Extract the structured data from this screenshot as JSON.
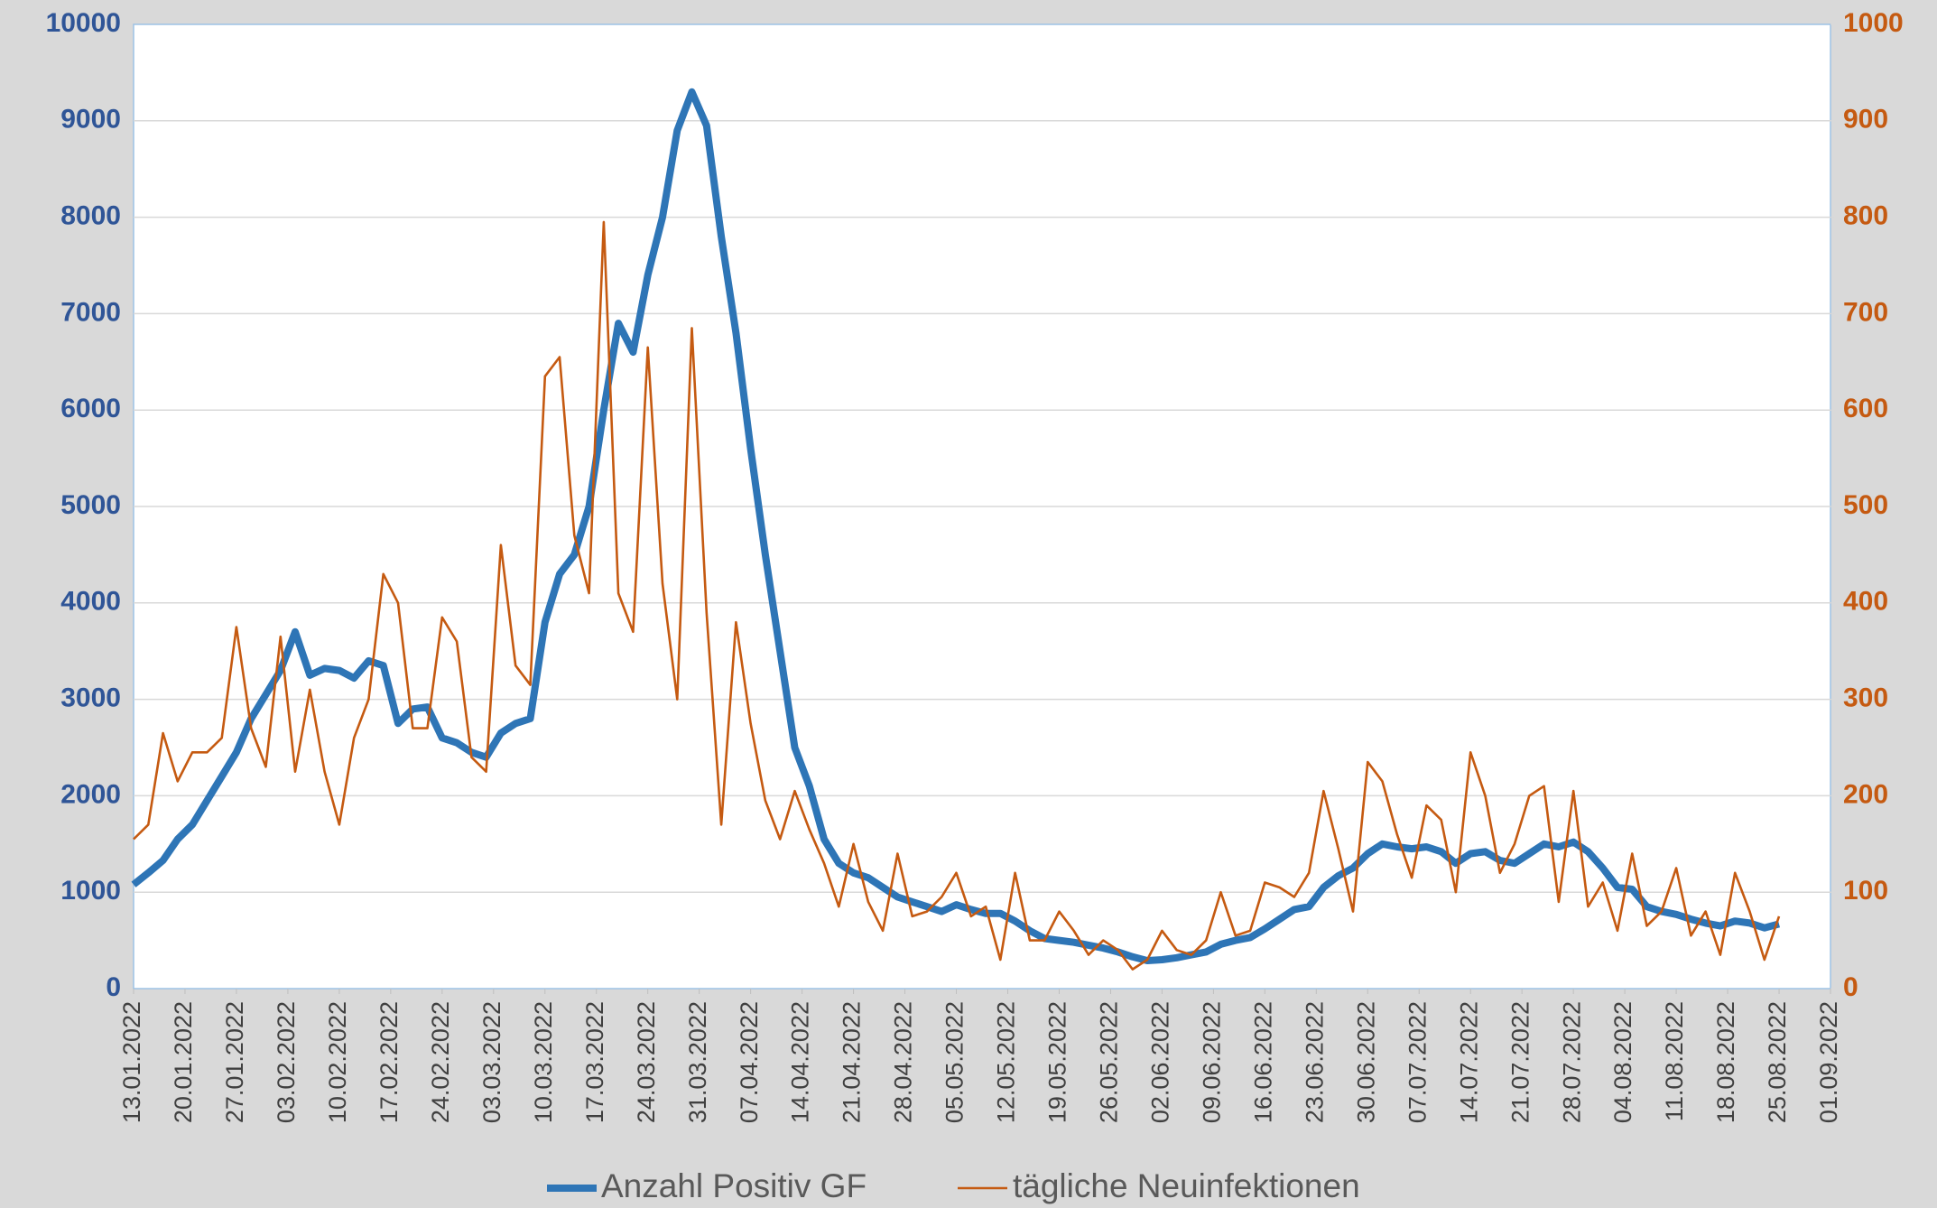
{
  "chart_data": {
    "type": "line",
    "x": [
      "13.01.2022",
      "15.01.2022",
      "17.01.2022",
      "19.01.2022",
      "21.01.2022",
      "23.01.2022",
      "25.01.2022",
      "27.01.2022",
      "29.01.2022",
      "31.01.2022",
      "02.02.2022",
      "04.02.2022",
      "06.02.2022",
      "08.02.2022",
      "10.02.2022",
      "12.02.2022",
      "14.02.2022",
      "16.02.2022",
      "18.02.2022",
      "20.02.2022",
      "22.02.2022",
      "24.02.2022",
      "26.02.2022",
      "28.02.2022",
      "02.03.2022",
      "04.03.2022",
      "06.03.2022",
      "08.03.2022",
      "10.03.2022",
      "12.03.2022",
      "14.03.2022",
      "16.03.2022",
      "18.03.2022",
      "20.03.2022",
      "22.03.2022",
      "24.03.2022",
      "26.03.2022",
      "28.03.2022",
      "30.03.2022",
      "01.04.2022",
      "03.04.2022",
      "05.04.2022",
      "07.04.2022",
      "09.04.2022",
      "11.04.2022",
      "13.04.2022",
      "15.04.2022",
      "17.04.2022",
      "19.04.2022",
      "21.04.2022",
      "23.04.2022",
      "25.04.2022",
      "27.04.2022",
      "29.04.2022",
      "01.05.2022",
      "03.05.2022",
      "05.05.2022",
      "07.05.2022",
      "09.05.2022",
      "11.05.2022",
      "13.05.2022",
      "15.05.2022",
      "17.05.2022",
      "19.05.2022",
      "21.05.2022",
      "23.05.2022",
      "25.05.2022",
      "27.05.2022",
      "29.05.2022",
      "31.05.2022",
      "02.06.2022",
      "04.06.2022",
      "06.06.2022",
      "08.06.2022",
      "10.06.2022",
      "12.06.2022",
      "14.06.2022",
      "16.06.2022",
      "18.06.2022",
      "20.06.2022",
      "22.06.2022",
      "24.06.2022",
      "26.06.2022",
      "28.06.2022",
      "30.06.2022",
      "02.07.2022",
      "04.07.2022",
      "06.07.2022",
      "08.07.2022",
      "10.07.2022",
      "12.07.2022",
      "14.07.2022",
      "16.07.2022",
      "18.07.2022",
      "20.07.2022",
      "22.07.2022",
      "24.07.2022",
      "26.07.2022",
      "28.07.2022",
      "30.07.2022",
      "01.08.2022",
      "03.08.2022",
      "05.08.2022",
      "07.08.2022",
      "09.08.2022",
      "11.08.2022",
      "13.08.2022",
      "15.08.2022",
      "17.08.2022",
      "19.08.2022",
      "21.08.2022",
      "23.08.2022",
      "25.08.2022"
    ],
    "series": [
      {
        "name": "Anzahl Positiv GF",
        "color": "#2e75b6",
        "axis": "y",
        "values": [
          1080,
          1200,
          1330,
          1550,
          1700,
          1950,
          2200,
          2450,
          2800,
          3050,
          3300,
          3700,
          3250,
          3320,
          3300,
          3220,
          3400,
          3350,
          2750,
          2900,
          2920,
          2600,
          2550,
          2450,
          2400,
          2650,
          2750,
          2800,
          3800,
          4300,
          4500,
          5000,
          6000,
          6900,
          6600,
          7400,
          8000,
          8900,
          9300,
          8950,
          7800,
          6800,
          5600,
          4500,
          3500,
          2500,
          2100,
          1550,
          1300,
          1200,
          1150,
          1050,
          950,
          900,
          850,
          800,
          870,
          820,
          780,
          780,
          700,
          600,
          520,
          500,
          480,
          450,
          420,
          380,
          330,
          290,
          300,
          320,
          350,
          380,
          460,
          500,
          530,
          620,
          720,
          820,
          850,
          1050,
          1170,
          1250,
          1400,
          1500,
          1470,
          1450,
          1470,
          1420,
          1300,
          1400,
          1420,
          1330,
          1300,
          1400,
          1500,
          1470,
          1520,
          1420,
          1250,
          1050,
          1030,
          850,
          800,
          770,
          720,
          680,
          650,
          700,
          680,
          630,
          670
        ]
      },
      {
        "name": "tägliche Neuinfektionen",
        "color": "#c55a11",
        "axis": "y2",
        "values": [
          155,
          170,
          265,
          215,
          245,
          245,
          260,
          375,
          270,
          230,
          365,
          225,
          310,
          225,
          170,
          260,
          300,
          430,
          400,
          270,
          270,
          385,
          360,
          240,
          225,
          460,
          335,
          315,
          635,
          655,
          470,
          410,
          795,
          410,
          370,
          665,
          420,
          300,
          685,
          390,
          170,
          380,
          275,
          195,
          155,
          205,
          165,
          130,
          85,
          150,
          90,
          60,
          140,
          75,
          80,
          95,
          120,
          75,
          85,
          30,
          120,
          50,
          50,
          80,
          60,
          35,
          50,
          40,
          20,
          30,
          60,
          40,
          35,
          50,
          100,
          55,
          60,
          110,
          105,
          95,
          120,
          205,
          145,
          80,
          235,
          215,
          160,
          115,
          190,
          175,
          100,
          245,
          200,
          120,
          150,
          200,
          210,
          90,
          205,
          85,
          110,
          60,
          140,
          65,
          80,
          125,
          55,
          80,
          35,
          120,
          80,
          30,
          75
        ]
      }
    ],
    "xlim": [
      "13.01.2022",
      "01.09.2022"
    ],
    "xticks": [
      "13.01.2022",
      "20.01.2022",
      "27.01.2022",
      "03.02.2022",
      "10.02.2022",
      "17.02.2022",
      "24.02.2022",
      "03.03.2022",
      "10.03.2022",
      "17.03.2022",
      "24.03.2022",
      "31.03.2022",
      "07.04.2022",
      "14.04.2022",
      "21.04.2022",
      "28.04.2022",
      "05.05.2022",
      "12.05.2022",
      "19.05.2022",
      "26.05.2022",
      "02.06.2022",
      "09.06.2022",
      "16.06.2022",
      "23.06.2022",
      "30.06.2022",
      "07.07.2022",
      "14.07.2022",
      "21.07.2022",
      "28.07.2022",
      "04.08.2022",
      "11.08.2022",
      "18.08.2022",
      "25.08.2022",
      "01.09.2022"
    ],
    "ylim": [
      0,
      10000
    ],
    "yticks": [
      0,
      1000,
      2000,
      3000,
      4000,
      5000,
      6000,
      7000,
      8000,
      9000,
      10000
    ],
    "y2lim": [
      0,
      1000
    ],
    "y2ticks": [
      0,
      100,
      200,
      300,
      400,
      500,
      600,
      700,
      800,
      900,
      1000
    ],
    "grid": true,
    "legend": "bottom"
  }
}
